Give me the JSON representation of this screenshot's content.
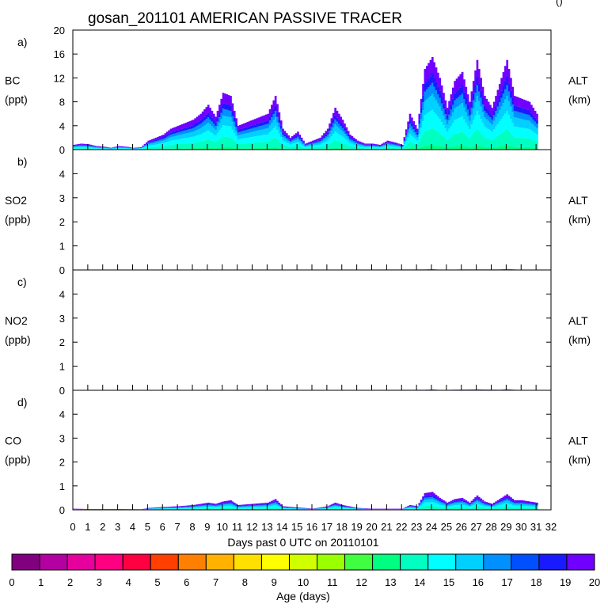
{
  "chart_data": {
    "type": "area",
    "title": "gosan_201101 AMERICAN PASSIVE TRACER",
    "corner_mark": "()",
    "panels": [
      {
        "id": "a",
        "tag": "a)",
        "species": "BC",
        "unit": "(ppt)",
        "right_label": "ALT",
        "right_unit": "(km)",
        "yticks": [
          0,
          4,
          8,
          12,
          16,
          20
        ],
        "ylim": [
          0,
          20
        ],
        "totals": [
          [
            0,
            0.8
          ],
          [
            0.5,
            1.0
          ],
          [
            1,
            0.9
          ],
          [
            1.5,
            0.6
          ],
          [
            2,
            0.5
          ],
          [
            2.5,
            0.3
          ],
          [
            3,
            0.6
          ],
          [
            3.5,
            0.5
          ],
          [
            4,
            0.3
          ],
          [
            4.5,
            0.4
          ],
          [
            5,
            1.5
          ],
          [
            5.5,
            2.0
          ],
          [
            6,
            2.5
          ],
          [
            6.5,
            3.5
          ],
          [
            7,
            4.0
          ],
          [
            7.5,
            4.5
          ],
          [
            8,
            5.0
          ],
          [
            8.5,
            6.0
          ],
          [
            9,
            7.5
          ],
          [
            9.5,
            5.5
          ],
          [
            10,
            9.5
          ],
          [
            10.5,
            9.0
          ],
          [
            11,
            4.0
          ],
          [
            11.5,
            4.5
          ],
          [
            12,
            5.0
          ],
          [
            12.5,
            5.5
          ],
          [
            13,
            6.0
          ],
          [
            13.5,
            9.0
          ],
          [
            14,
            3.5
          ],
          [
            14.5,
            2.0
          ],
          [
            15,
            3.0
          ],
          [
            15.5,
            1.0
          ],
          [
            16,
            1.5
          ],
          [
            16.5,
            2.0
          ],
          [
            17,
            3.5
          ],
          [
            17.5,
            7.0
          ],
          [
            18,
            5.0
          ],
          [
            18.5,
            2.5
          ],
          [
            19,
            1.5
          ],
          [
            19.5,
            1.0
          ],
          [
            20,
            1.0
          ],
          [
            20.5,
            0.8
          ],
          [
            21,
            1.5
          ],
          [
            21.5,
            1.2
          ],
          [
            22,
            0.8
          ],
          [
            22.5,
            6.0
          ],
          [
            23,
            3.5
          ],
          [
            23.5,
            13.5
          ],
          [
            24,
            15.5
          ],
          [
            24.5,
            12.0
          ],
          [
            25,
            7.0
          ],
          [
            25.5,
            11.5
          ],
          [
            26,
            13.0
          ],
          [
            26.5,
            8.0
          ],
          [
            27,
            15.0
          ],
          [
            27.5,
            9.0
          ],
          [
            28,
            7.0
          ],
          [
            28.5,
            11.0
          ],
          [
            29,
            15.0
          ],
          [
            29.5,
            9.0
          ],
          [
            30,
            8.5
          ],
          [
            30.5,
            8.0
          ],
          [
            31,
            6.0
          ]
        ]
      },
      {
        "id": "b",
        "tag": "b)",
        "species": "SO2",
        "unit": "(ppb)",
        "right_label": "ALT",
        "right_unit": "(km)",
        "yticks": [
          0,
          1,
          2,
          3,
          4
        ],
        "ylim": [
          0,
          5
        ],
        "totals": [
          [
            0,
            0
          ],
          [
            23.5,
            0.02
          ],
          [
            24,
            0.03
          ],
          [
            24.5,
            0.01
          ],
          [
            26,
            0.02
          ],
          [
            27,
            0.02
          ],
          [
            28.5,
            0.02
          ],
          [
            29,
            0.04
          ],
          [
            29.5,
            0.02
          ],
          [
            31,
            0
          ]
        ]
      },
      {
        "id": "c",
        "tag": "c)",
        "species": "NO2",
        "unit": "(ppb)",
        "right_label": "ALT",
        "right_unit": "(km)",
        "yticks": [
          0,
          1,
          2,
          3,
          4
        ],
        "ylim": [
          0,
          5
        ],
        "totals": [
          [
            0,
            0
          ],
          [
            10,
            0.01
          ],
          [
            13.5,
            0.01
          ],
          [
            23.5,
            0.02
          ],
          [
            24,
            0.04
          ],
          [
            24.5,
            0.01
          ],
          [
            26,
            0.03
          ],
          [
            27,
            0.04
          ],
          [
            28.5,
            0.02
          ],
          [
            29,
            0.05
          ],
          [
            29.5,
            0.02
          ],
          [
            31,
            0
          ]
        ]
      },
      {
        "id": "d",
        "tag": "d)",
        "species": "CO",
        "unit": "(ppb)",
        "right_label": "ALT",
        "right_unit": "(km)",
        "yticks": [
          0,
          1,
          2,
          3,
          4
        ],
        "ylim": [
          0,
          5
        ],
        "totals": [
          [
            0,
            0.05
          ],
          [
            1,
            0.03
          ],
          [
            3,
            0.03
          ],
          [
            4.5,
            0.02
          ],
          [
            5,
            0.08
          ],
          [
            6,
            0.12
          ],
          [
            7,
            0.15
          ],
          [
            8,
            0.2
          ],
          [
            9,
            0.3
          ],
          [
            9.5,
            0.25
          ],
          [
            10,
            0.35
          ],
          [
            10.5,
            0.4
          ],
          [
            11,
            0.2
          ],
          [
            12,
            0.25
          ],
          [
            13,
            0.3
          ],
          [
            13.5,
            0.45
          ],
          [
            14,
            0.15
          ],
          [
            15,
            0.1
          ],
          [
            16,
            0.05
          ],
          [
            17,
            0.15
          ],
          [
            17.5,
            0.3
          ],
          [
            18,
            0.2
          ],
          [
            19,
            0.08
          ],
          [
            20,
            0.05
          ],
          [
            22,
            0.05
          ],
          [
            22.5,
            0.2
          ],
          [
            23,
            0.15
          ],
          [
            23.5,
            0.7
          ],
          [
            24,
            0.75
          ],
          [
            24.5,
            0.5
          ],
          [
            25,
            0.3
          ],
          [
            25.5,
            0.45
          ],
          [
            26,
            0.5
          ],
          [
            26.5,
            0.3
          ],
          [
            27,
            0.6
          ],
          [
            27.5,
            0.35
          ],
          [
            28,
            0.25
          ],
          [
            28.5,
            0.45
          ],
          [
            29,
            0.65
          ],
          [
            29.5,
            0.4
          ],
          [
            30,
            0.4
          ],
          [
            30.5,
            0.35
          ],
          [
            31,
            0.3
          ]
        ]
      }
    ],
    "xlabel": "Days past 0 UTC on 20110101",
    "xticks": [
      0,
      1,
      2,
      3,
      4,
      5,
      6,
      7,
      8,
      9,
      10,
      11,
      12,
      13,
      14,
      15,
      16,
      17,
      18,
      19,
      20,
      21,
      22,
      23,
      24,
      25,
      26,
      27,
      28,
      29,
      30,
      31,
      32
    ],
    "xlim": [
      0,
      32
    ],
    "colorbar": {
      "label": "Age (days)",
      "ticks": [
        0,
        1,
        2,
        3,
        4,
        5,
        6,
        7,
        8,
        9,
        10,
        11,
        12,
        13,
        14,
        15,
        16,
        17,
        18,
        19,
        20
      ],
      "colors": [
        "#800080",
        "#b300a0",
        "#e6009e",
        "#ff0080",
        "#ff0040",
        "#ff4000",
        "#ff8000",
        "#ffb300",
        "#ffe000",
        "#ffff00",
        "#d0ff00",
        "#9aff00",
        "#40ff40",
        "#00ff80",
        "#00ffc0",
        "#00ffff",
        "#00d0ff",
        "#0090ff",
        "#0050ff",
        "#1a1aff",
        "#7000ff"
      ]
    }
  }
}
